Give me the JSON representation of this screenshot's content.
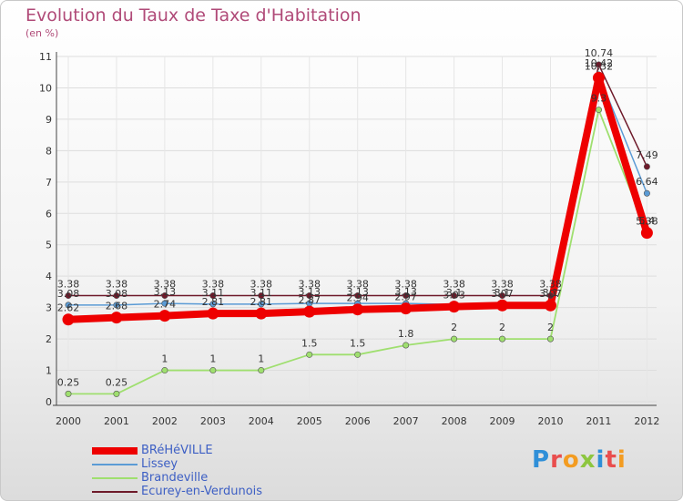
{
  "title": "Evolution du Taux de Taxe d'Habitation",
  "subtitle": "(en %)",
  "logo": {
    "text": "Proxiti",
    "letter_colors": [
      "#2f8fd8",
      "#e94e4e",
      "#f39c21",
      "#8dc63f",
      "#2f8fd8",
      "#e94e4e",
      "#f39c21"
    ]
  },
  "chart_data": {
    "type": "line",
    "x": [
      2000,
      2001,
      2002,
      2003,
      2004,
      2005,
      2006,
      2007,
      2008,
      2009,
      2010,
      2011,
      2012
    ],
    "ylim": [
      0,
      11
    ],
    "yticks": [
      0,
      1,
      2,
      3,
      4,
      5,
      6,
      7,
      8,
      9,
      10,
      11
    ],
    "series": [
      {
        "name": "Ecurey-en-Verdunois",
        "color": "#6e1a2a",
        "values": [
          3.38,
          3.38,
          3.38,
          3.38,
          3.38,
          3.38,
          3.38,
          3.38,
          3.38,
          3.38,
          3.38,
          10.74,
          7.49
        ],
        "labels": [
          "3.38",
          "3.38",
          "3.38",
          "3.38",
          "3.38",
          "3.38",
          "3.38",
          "3.38",
          "3.38",
          "3.38",
          "3.38",
          "10.74",
          "7.49"
        ]
      },
      {
        "name": "Lissey",
        "color": "#5b9bd5",
        "values": [
          3.08,
          3.08,
          3.13,
          3.11,
          3.11,
          3.13,
          3.13,
          3.13,
          3.1,
          3.1,
          3.1,
          10.42,
          6.64
        ],
        "labels": [
          "3.08",
          "3.08",
          "3.13",
          "3.11",
          "3.11",
          "3.13",
          "3.13",
          "3.13",
          "3.1",
          "3.1",
          "3.1",
          "10.42",
          "6.64"
        ]
      },
      {
        "name": "Brandeville",
        "color": "#9fdf6f",
        "values": [
          0.25,
          0.25,
          1,
          1,
          1,
          1.5,
          1.5,
          1.8,
          2,
          2,
          2,
          9.3,
          5.4
        ],
        "labels": [
          "0.25",
          "0.25",
          "1",
          "1",
          "1",
          "1.5",
          "1.5",
          "1.8",
          "2",
          "2",
          "2",
          "9.3",
          "5.4"
        ]
      },
      {
        "name": "BRéHéVILLE",
        "color": "#ee0000",
        "values": [
          2.62,
          2.68,
          2.74,
          2.81,
          2.81,
          2.87,
          2.94,
          2.97,
          3.03,
          3.07,
          3.07,
          10.32,
          5.38
        ],
        "labels": [
          "2.62",
          "2.68",
          "2.74",
          "2.81",
          "2.81",
          "2.87",
          "2.94",
          "2.97",
          "3.03",
          "3.07",
          "3.07",
          "10.32",
          "5.38"
        ]
      }
    ],
    "legend": [
      "BRéHéVILLE",
      "Lissey",
      "Brandeville",
      "Ecurey-en-Verdunois"
    ],
    "legend_position": "bottom-left"
  }
}
